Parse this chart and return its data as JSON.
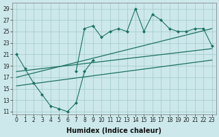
{
  "xlabel": "Humidex (Indice chaleur)",
  "background_color": "#cce8ea",
  "grid_color": "#a0c8cc",
  "line_color": "#1a7060",
  "line1_x": [
    0,
    1,
    2,
    3,
    4,
    5,
    6,
    7,
    8,
    9
  ],
  "line1_y": [
    21,
    18.5,
    16,
    14,
    12,
    11.5,
    11,
    12.5,
    18,
    20
  ],
  "line2_x": [
    7,
    8,
    9,
    10,
    11,
    12,
    13,
    14,
    15,
    16,
    17,
    18,
    19,
    20,
    21,
    22,
    23
  ],
  "line2_y": [
    18,
    25.5,
    26,
    24,
    25,
    25.5,
    25,
    29,
    25,
    28,
    27,
    25.5,
    25,
    25,
    25.5,
    25.5,
    22.5
  ],
  "trend1_x": [
    0,
    23
  ],
  "trend1_y": [
    18,
    22
  ],
  "trend2_x": [
    0,
    23
  ],
  "trend2_y": [
    15.5,
    20
  ],
  "trend3_x": [
    0,
    23
  ],
  "trend3_y": [
    17,
    25.5
  ],
  "xlim": [
    -0.5,
    23.5
  ],
  "ylim": [
    10.5,
    30
  ],
  "yticks": [
    11,
    13,
    15,
    17,
    19,
    21,
    23,
    25,
    27,
    29
  ],
  "xticks": [
    0,
    1,
    2,
    3,
    4,
    5,
    6,
    7,
    8,
    9,
    10,
    11,
    12,
    13,
    14,
    15,
    16,
    17,
    18,
    19,
    20,
    21,
    22,
    23
  ],
  "tick_fontsize": 5.5,
  "xlabel_fontsize": 7
}
